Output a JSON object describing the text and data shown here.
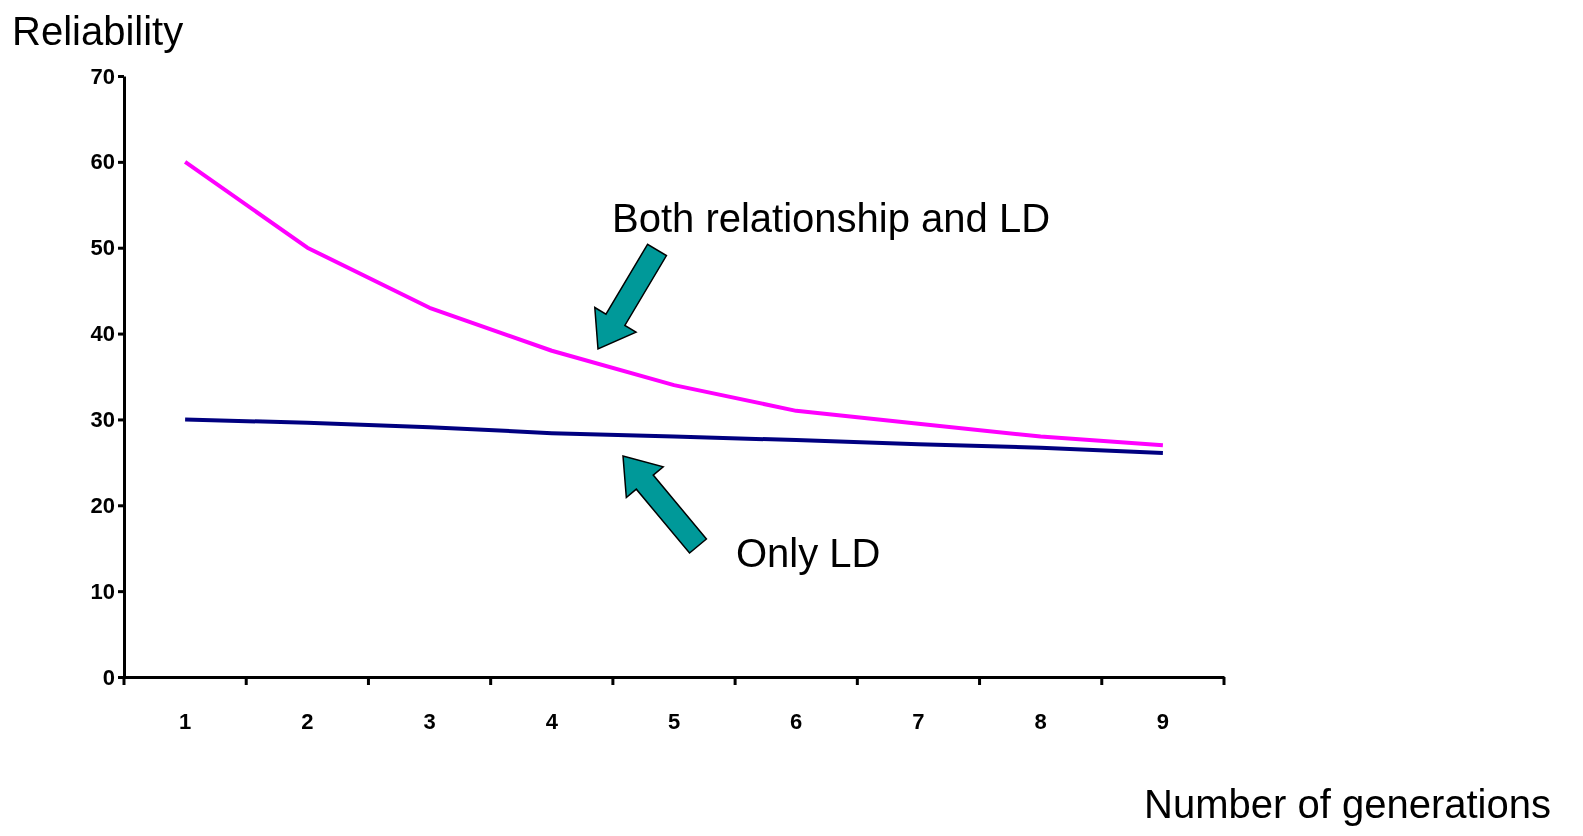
{
  "chart_data": {
    "type": "line",
    "xlabel": "Number of generations",
    "ylabel": "Reliability",
    "categories": [
      "1",
      "2",
      "3",
      "4",
      "5",
      "6",
      "7",
      "8",
      "9"
    ],
    "series": [
      {
        "color": "#ff00ff",
        "values": [
          60,
          50,
          43,
          38,
          34,
          31,
          29.5,
          28,
          27
        ]
      },
      {
        "color": "#000080",
        "values": [
          30,
          29.6,
          29.1,
          28.4,
          28,
          27.6,
          27.1,
          26.7,
          26.1
        ]
      }
    ],
    "ylim": [
      0,
      70
    ],
    "yticks": [
      0,
      10,
      20,
      30,
      40,
      50,
      60,
      70
    ],
    "grid": false,
    "marker": "none",
    "line_style": "solid",
    "annotations": [
      "Both relationship and LD",
      "Only LD"
    ]
  }
}
